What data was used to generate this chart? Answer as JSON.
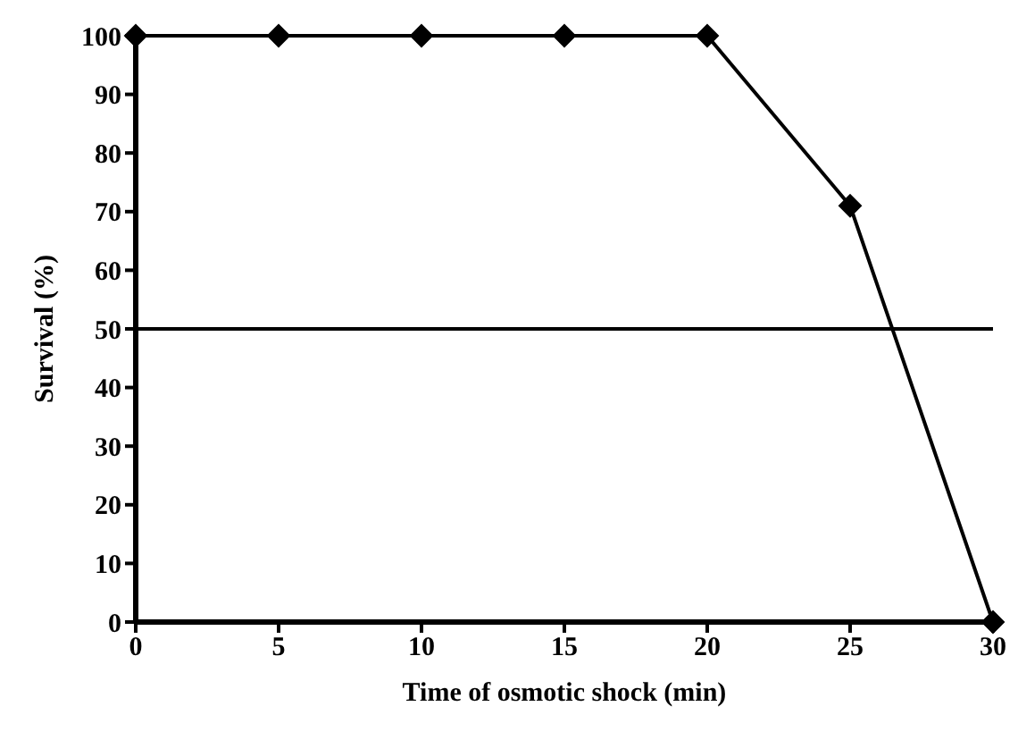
{
  "chart_data": {
    "type": "line",
    "xlabel": "Time of osmotic shock (min)",
    "ylabel": "Survival (%)",
    "x": [
      0,
      5,
      10,
      15,
      20,
      25,
      30
    ],
    "series": [
      {
        "color": "#000000",
        "values": [
          100,
          100,
          100,
          100,
          100,
          71,
          0
        ]
      }
    ],
    "xlim": [
      0,
      30
    ],
    "xticks": [
      0,
      5,
      10,
      15,
      20,
      25,
      30
    ],
    "ylim": [
      0,
      100
    ],
    "yticks": [
      0,
      10,
      20,
      30,
      40,
      50,
      60,
      70,
      80,
      90,
      100
    ],
    "ref_lines": [
      {
        "axis": "y",
        "value": 50,
        "color": "#000000"
      }
    ],
    "marker": "diamond",
    "line_style": "solid",
    "grid": false,
    "legend": false
  }
}
